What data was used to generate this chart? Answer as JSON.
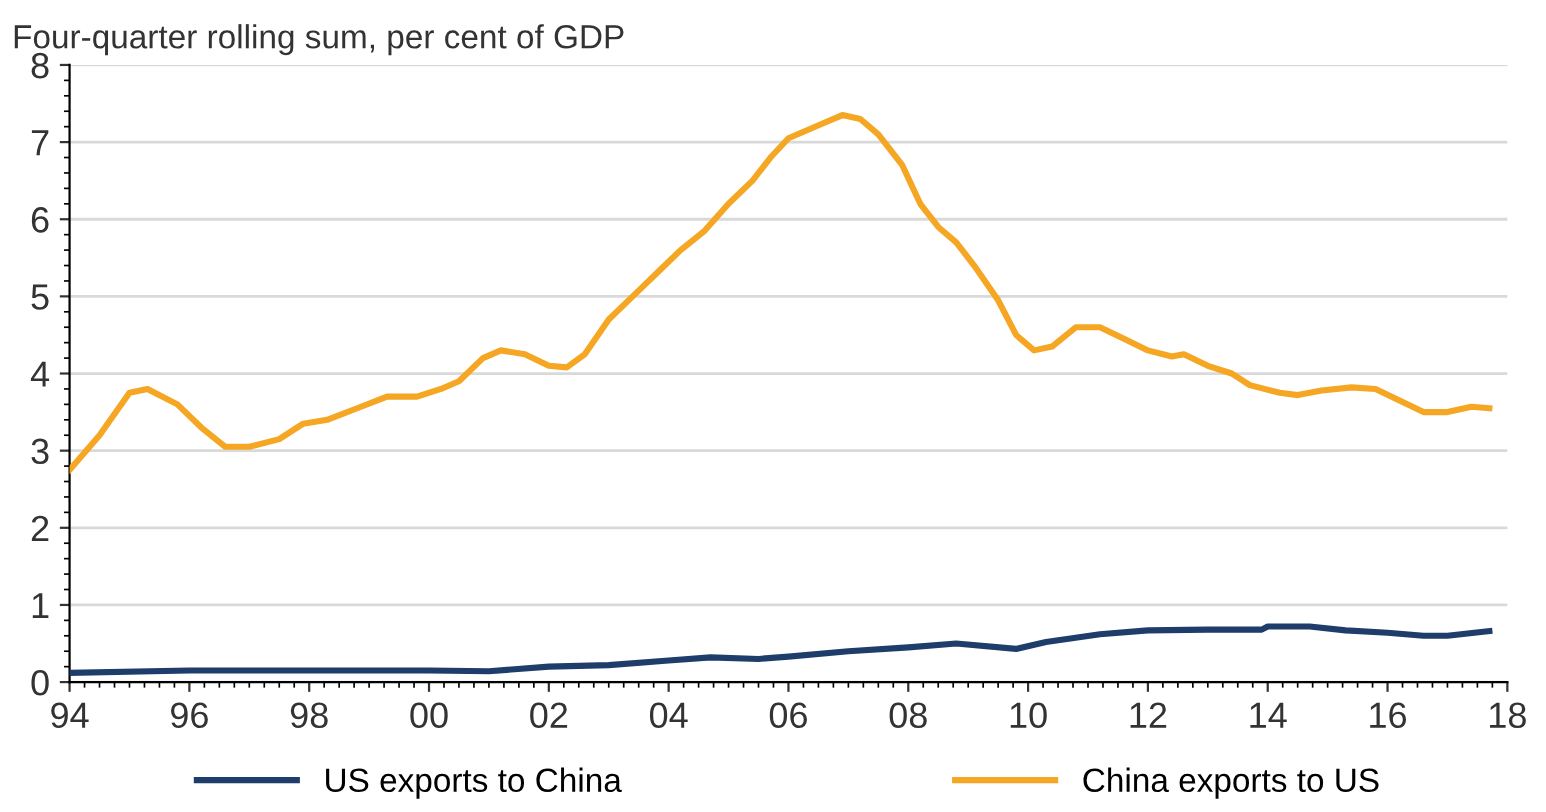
{
  "chart_data": {
    "type": "line",
    "title": "Four-quarter rolling sum, per cent of GDP",
    "x": [
      1994.0,
      1994.5,
      1995.0,
      1995.3,
      1995.8,
      1996.2,
      1996.6,
      1997.0,
      1997.5,
      1997.9,
      1998.3,
      1998.8,
      1999.3,
      1999.8,
      2000.2,
      2000.5,
      2000.9,
      2001.2,
      2001.6,
      2002.0,
      2002.3,
      2002.6,
      2003.0,
      2003.4,
      2003.8,
      2004.2,
      2004.6,
      2005.0,
      2005.4,
      2005.7,
      2006.0,
      2006.3,
      2006.6,
      2006.9,
      2007.2,
      2007.5,
      2007.9,
      2008.2,
      2008.5,
      2008.8,
      2009.1,
      2009.5,
      2009.8,
      2010.1,
      2010.4,
      2010.8,
      2011.2,
      2011.6,
      2012.0,
      2012.4,
      2012.6,
      2013.0,
      2013.4,
      2013.7,
      2014.2,
      2014.5,
      2014.9,
      2015.4,
      2015.8,
      2016.2,
      2016.6,
      2017.0,
      2017.4,
      2017.7
    ],
    "series": [
      {
        "name": "US exports to China",
        "color": "#1f3d6b",
        "x": [
          1994.0,
          1996.0,
          1998.0,
          2000.0,
          2001.0,
          2002.0,
          2003.0,
          2004.0,
          2004.7,
          2005.5,
          2006.0,
          2007.0,
          2008.0,
          2008.8,
          2009.8,
          2010.3,
          2011.2,
          2012.0,
          2013.0,
          2013.9,
          2014.0,
          2014.7,
          2015.3,
          2016.0,
          2016.6,
          2017.0,
          2017.7
        ],
        "values": [
          0.12,
          0.15,
          0.15,
          0.15,
          0.14,
          0.2,
          0.22,
          0.28,
          0.32,
          0.3,
          0.33,
          0.4,
          0.45,
          0.5,
          0.43,
          0.52,
          0.62,
          0.67,
          0.68,
          0.68,
          0.72,
          0.72,
          0.67,
          0.64,
          0.6,
          0.6,
          0.66
        ]
      },
      {
        "name": "China exports to US",
        "color": "#f5a623",
        "values": [
          2.75,
          3.2,
          3.75,
          3.8,
          3.6,
          3.3,
          3.05,
          3.05,
          3.15,
          3.35,
          3.4,
          3.55,
          3.7,
          3.7,
          3.8,
          3.9,
          4.2,
          4.3,
          4.25,
          4.1,
          4.08,
          4.25,
          4.7,
          5.0,
          5.3,
          5.6,
          5.85,
          6.2,
          6.5,
          6.8,
          7.05,
          7.15,
          7.25,
          7.35,
          7.3,
          7.1,
          6.7,
          6.2,
          5.9,
          5.7,
          5.4,
          4.95,
          4.5,
          4.3,
          4.35,
          4.6,
          4.6,
          4.45,
          4.3,
          4.22,
          4.25,
          4.1,
          4.0,
          3.85,
          3.75,
          3.72,
          3.78,
          3.82,
          3.8,
          3.65,
          3.5,
          3.5,
          3.57,
          3.55
        ]
      }
    ],
    "xlim": [
      1994,
      2018
    ],
    "xticks": [
      {
        "value": 1994,
        "label": "94"
      },
      {
        "value": 1996,
        "label": "96"
      },
      {
        "value": 1998,
        "label": "98"
      },
      {
        "value": 2000,
        "label": "00"
      },
      {
        "value": 2002,
        "label": "02"
      },
      {
        "value": 2004,
        "label": "04"
      },
      {
        "value": 2006,
        "label": "06"
      },
      {
        "value": 2008,
        "label": "08"
      },
      {
        "value": 2010,
        "label": "10"
      },
      {
        "value": 2012,
        "label": "12"
      },
      {
        "value": 2014,
        "label": "14"
      },
      {
        "value": 2016,
        "label": "16"
      },
      {
        "value": 2018,
        "label": "18"
      }
    ],
    "ylim": [
      0,
      8
    ],
    "yticks": [
      0,
      1,
      2,
      3,
      4,
      5,
      6,
      7,
      8
    ],
    "grid": "y",
    "legend": "bottom",
    "marker": "none",
    "line_style": "solid"
  }
}
